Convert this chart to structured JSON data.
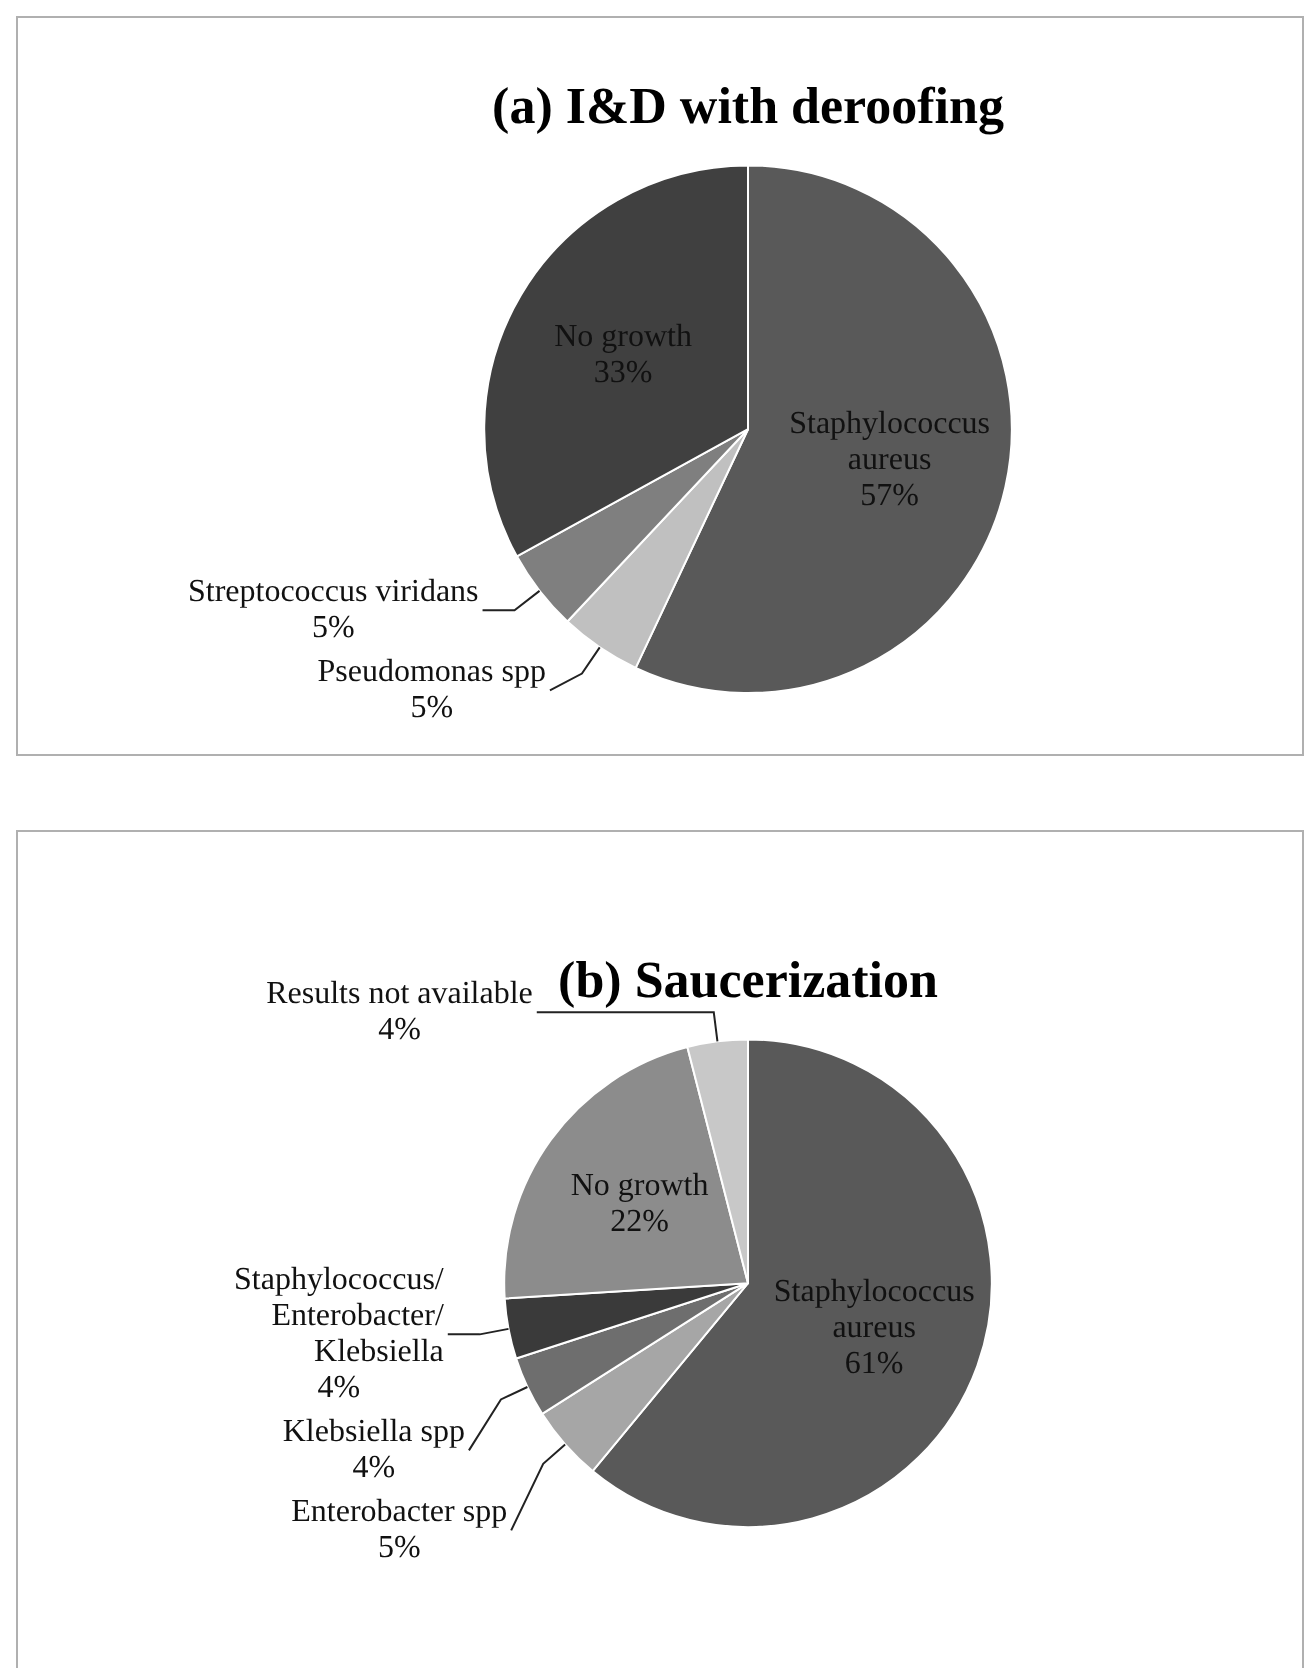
{
  "chart_data": [
    {
      "type": "pie",
      "title": "(a) I&D with deroofing",
      "categories": [
        "Staphylococcus aureus",
        "Pseudomonas spp",
        "Streptococcus viridans",
        "No growth"
      ],
      "values": [
        57,
        5,
        5,
        33
      ],
      "colors": [
        "#595959",
        "#c0c0c0",
        "#7f7f7f",
        "#404040"
      ],
      "value_labels": [
        "57%",
        "5%",
        "5%",
        "33%"
      ],
      "legend": false
    },
    {
      "type": "pie",
      "title": "(b) Saucerization",
      "categories": [
        "Staphylococcus aureus",
        "Enterobacter spp",
        "Klebsiella spp",
        "Staphylococcus/Enterobacter/Klebsiella",
        "No growth",
        "Results not available"
      ],
      "values": [
        61,
        5,
        4,
        4,
        22,
        4
      ],
      "colors": [
        "#595959",
        "#a6a6a6",
        "#6e6e6e",
        "#3a3a3a",
        "#8c8c8c",
        "#c8c8c8"
      ],
      "value_labels": [
        "61%",
        "5%",
        "4%",
        "4%",
        "22%",
        "4%"
      ],
      "legend": false
    }
  ]
}
